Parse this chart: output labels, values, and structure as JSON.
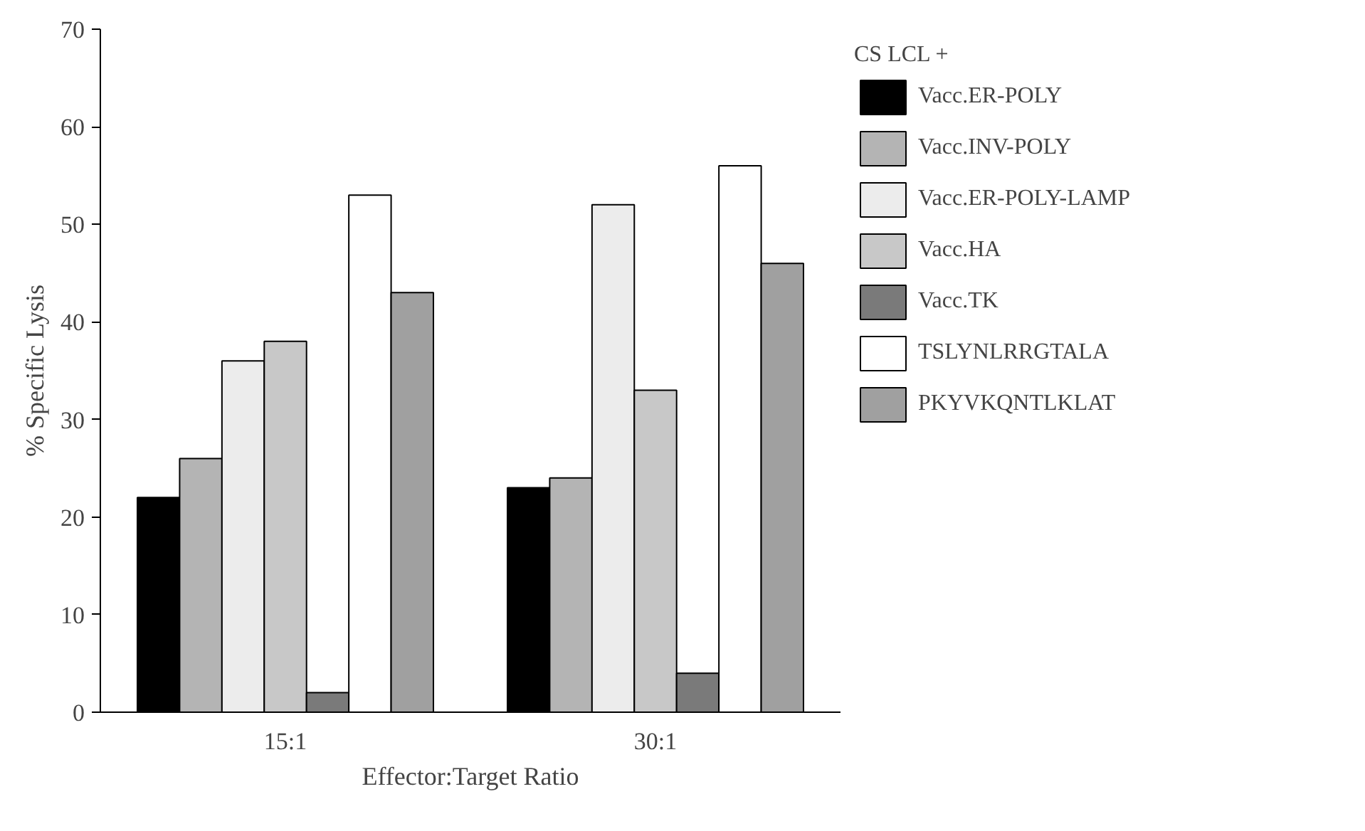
{
  "chart_data": {
    "type": "bar",
    "xlabel": "Effector:Target Ratio",
    "ylabel": "% Specific Lysis",
    "legend_title": "CS LCL +",
    "categories": [
      "15:1",
      "30:1"
    ],
    "ylim": [
      0,
      70
    ],
    "yticks": [
      0,
      10,
      20,
      30,
      40,
      50,
      60,
      70
    ],
    "grid": false,
    "legend": "right",
    "series": [
      {
        "name": "Vacc.ER-POLY",
        "color": "#000000",
        "values": [
          22,
          23
        ]
      },
      {
        "name": "Vacc.INV-POLY",
        "color": "#b4b4b4",
        "values": [
          26,
          24
        ]
      },
      {
        "name": "Vacc.ER-POLY-LAMP",
        "color": "#ececec",
        "values": [
          36,
          52
        ]
      },
      {
        "name": "Vacc.HA",
        "color": "#c8c8c8",
        "values": [
          38,
          33
        ]
      },
      {
        "name": "Vacc.TK",
        "color": "#7a7a7a",
        "values": [
          2,
          4
        ]
      },
      {
        "name": "TSLYNLRRGTALA",
        "color": "#ffffff",
        "values": [
          53,
          56
        ]
      },
      {
        "name": "PKYVKQNTLKLAT",
        "color": "#a0a0a0",
        "values": [
          43,
          46
        ]
      }
    ]
  }
}
